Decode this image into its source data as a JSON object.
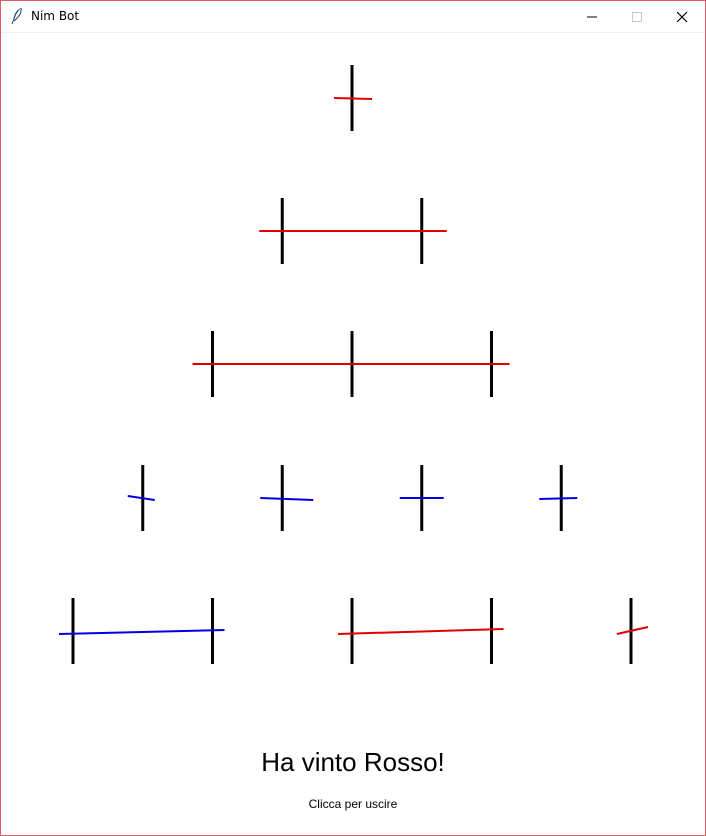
{
  "window": {
    "title": "Nim Bot",
    "icon": "feather-icon",
    "controls": [
      "minimize-icon",
      "maximize-icon",
      "close-icon"
    ]
  },
  "board": {
    "rows": [
      {
        "sticks": 1
      },
      {
        "sticks": 2
      },
      {
        "sticks": 3
      },
      {
        "sticks": 4
      },
      {
        "sticks": 5
      }
    ],
    "strokes": [
      {
        "row": 1,
        "color": "#e00000",
        "covers": [
          1
        ]
      },
      {
        "row": 2,
        "color": "#e00000",
        "covers": [
          1,
          2
        ]
      },
      {
        "row": 3,
        "color": "#e00000",
        "covers": [
          1,
          2,
          3
        ]
      },
      {
        "row": 4,
        "color": "#0000e0",
        "covers": [
          1
        ]
      },
      {
        "row": 4,
        "color": "#0000e0",
        "covers": [
          2
        ]
      },
      {
        "row": 4,
        "color": "#0000e0",
        "covers": [
          3
        ]
      },
      {
        "row": 4,
        "color": "#0000e0",
        "covers": [
          4
        ]
      },
      {
        "row": 5,
        "color": "#0000e0",
        "covers": [
          1,
          2
        ]
      },
      {
        "row": 5,
        "color": "#e00000",
        "covers": [
          3,
          4
        ]
      },
      {
        "row": 5,
        "color": "#e00000",
        "covers": [
          5
        ]
      }
    ],
    "stick_color": "#000000"
  },
  "status": {
    "result": "Ha vinto Rosso!",
    "hint": "Clicca per uscire"
  }
}
